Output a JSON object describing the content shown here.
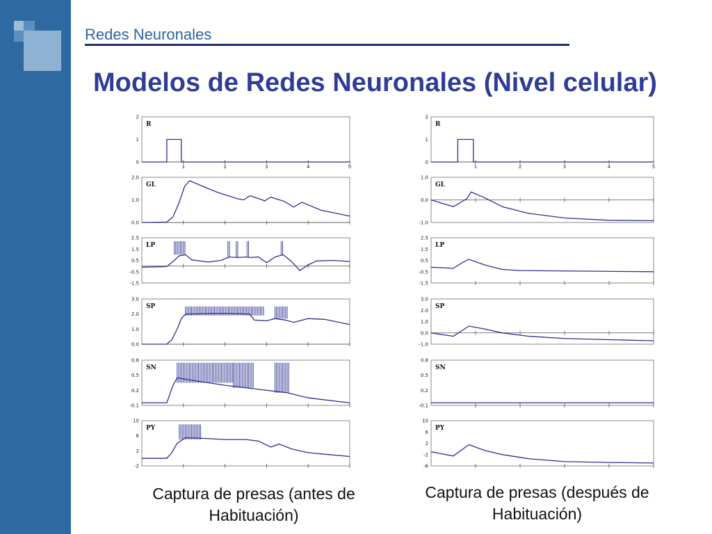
{
  "header": {
    "section_title": "Redes Neuronales",
    "slide_title": "Modelos de Redes Neuronales (Nivel celular)"
  },
  "captions": {
    "left": "Captura de presas (antes de Habituación)",
    "right": "Captura de presas (después de Habituación)"
  },
  "colors": {
    "sidebar": "#2e6aa1",
    "title": "#2f3d96",
    "trace": "#2b2f8f"
  },
  "chart_data": [
    {
      "type": "line",
      "condition": "Captura de presas (antes de Habituación)",
      "xticks": [
        "1",
        "2",
        "3",
        "4",
        "5"
      ],
      "panels": [
        {
          "label": "R",
          "yticks": [
            "2",
            "1",
            "0"
          ],
          "ylim": [
            0,
            2
          ],
          "grid_y": 0,
          "series": [
            [
              0,
              0
            ],
            [
              0.6,
              0
            ],
            [
              0.6,
              1
            ],
            [
              0.95,
              1
            ],
            [
              0.95,
              0
            ],
            [
              5,
              0
            ]
          ],
          "bursts": []
        },
        {
          "label": "GL",
          "yticks": [
            "2.0",
            "1.0",
            "0.0"
          ],
          "ylim": [
            0,
            2
          ],
          "grid_y": 0,
          "series": [
            [
              0,
              0
            ],
            [
              0.6,
              0.02
            ],
            [
              0.75,
              0.25
            ],
            [
              0.9,
              0.9
            ],
            [
              1.03,
              1.6
            ],
            [
              1.15,
              1.85
            ],
            [
              1.4,
              1.65
            ],
            [
              1.8,
              1.35
            ],
            [
              2.3,
              1.05
            ],
            [
              2.45,
              1.0
            ],
            [
              2.6,
              1.18
            ],
            [
              2.9,
              1.0
            ],
            [
              2.95,
              0.95
            ],
            [
              3.1,
              1.12
            ],
            [
              3.4,
              0.95
            ],
            [
              3.55,
              0.8
            ],
            [
              3.65,
              0.68
            ],
            [
              3.85,
              0.9
            ],
            [
              4.3,
              0.55
            ],
            [
              5,
              0.28
            ]
          ],
          "bursts": []
        },
        {
          "label": "LP",
          "yticks": [
            "2.5",
            "1.5",
            "0.5",
            "-0.5",
            "-1.5"
          ],
          "ylim": [
            -1.5,
            2.5
          ],
          "grid_y": 0,
          "series": [
            [
              0,
              -0.1
            ],
            [
              0.6,
              -0.05
            ],
            [
              0.75,
              0.4
            ],
            [
              0.9,
              0.9
            ],
            [
              1.05,
              1.0
            ],
            [
              1.2,
              0.55
            ],
            [
              1.6,
              0.35
            ],
            [
              1.9,
              0.5
            ],
            [
              2.1,
              0.8
            ],
            [
              2.3,
              0.75
            ],
            [
              2.5,
              0.8
            ],
            [
              2.6,
              0.75
            ],
            [
              2.8,
              0.8
            ],
            [
              3.0,
              0.3
            ],
            [
              3.2,
              0.8
            ],
            [
              3.4,
              1.0
            ],
            [
              3.6,
              0.4
            ],
            [
              3.8,
              -0.4
            ],
            [
              4.0,
              0.1
            ],
            [
              4.2,
              0.45
            ],
            [
              4.6,
              0.5
            ],
            [
              5,
              0.4
            ]
          ],
          "bursts": [
            [
              0.78,
              1.05,
              1.0,
              2.2
            ],
            [
              2.07,
              2.12,
              0.8,
              2.2
            ],
            [
              2.27,
              2.32,
              0.75,
              2.2
            ],
            [
              2.53,
              2.58,
              0.8,
              2.2
            ],
            [
              3.35,
              3.42,
              1.0,
              2.2
            ]
          ]
        },
        {
          "label": "SP",
          "yticks": [
            "3.0",
            "2.0",
            "1.0",
            "0.0"
          ],
          "ylim": [
            0,
            3
          ],
          "grid_y": 0,
          "series": [
            [
              0,
              0
            ],
            [
              0.6,
              0
            ],
            [
              0.72,
              0.3
            ],
            [
              0.85,
              1.0
            ],
            [
              0.95,
              1.7
            ],
            [
              1.05,
              2.0
            ],
            [
              2.0,
              2.05
            ],
            [
              2.6,
              2.0
            ],
            [
              2.7,
              1.6
            ],
            [
              3.0,
              1.55
            ],
            [
              3.2,
              1.7
            ],
            [
              3.45,
              1.6
            ],
            [
              3.65,
              1.45
            ],
            [
              4.0,
              1.7
            ],
            [
              4.4,
              1.65
            ],
            [
              5,
              1.3
            ]
          ],
          "bursts": [
            [
              1.05,
              2.95,
              1.9,
              2.5
            ],
            [
              3.2,
              3.5,
              1.7,
              2.5
            ]
          ]
        },
        {
          "label": "SN",
          "yticks": [
            "0.8",
            "0.5",
            "0.2",
            "-0.1"
          ],
          "ylim": [
            -0.1,
            0.8
          ],
          "grid_y": null,
          "series": [
            [
              0,
              -0.05
            ],
            [
              0.6,
              -0.05
            ],
            [
              0.75,
              0.3
            ],
            [
              0.85,
              0.45
            ],
            [
              1.2,
              0.4
            ],
            [
              2.0,
              0.3
            ],
            [
              3.0,
              0.2
            ],
            [
              3.5,
              0.15
            ],
            [
              4.0,
              0.05
            ],
            [
              5,
              -0.05
            ]
          ],
          "bursts": [
            [
              0.85,
              2.2,
              0.35,
              0.75
            ],
            [
              2.2,
              2.7,
              0.25,
              0.75
            ],
            [
              3.2,
              3.55,
              0.15,
              0.75
            ]
          ]
        },
        {
          "label": "PY",
          "yticks": [
            "10",
            "6",
            "2",
            "-2"
          ],
          "ylim": [
            -2,
            10
          ],
          "grid_y": null,
          "series": [
            [
              0,
              0
            ],
            [
              0.6,
              0
            ],
            [
              0.72,
              1.5
            ],
            [
              0.85,
              4.0
            ],
            [
              1.05,
              5.5
            ],
            [
              1.5,
              5.3
            ],
            [
              2.0,
              5.0
            ],
            [
              2.5,
              5.0
            ],
            [
              2.8,
              4.6
            ],
            [
              3.1,
              3.0
            ],
            [
              3.3,
              3.8
            ],
            [
              3.6,
              2.5
            ],
            [
              4.0,
              1.5
            ],
            [
              4.5,
              1.0
            ],
            [
              5,
              0.5
            ]
          ],
          "bursts": [
            [
              0.9,
              1.45,
              5.0,
              9.0
            ]
          ]
        }
      ]
    },
    {
      "type": "line",
      "condition": "Captura de presas (después de Habituación)",
      "xticks": [
        "1",
        "2",
        "3",
        "4",
        "5"
      ],
      "panels": [
        {
          "label": "R",
          "yticks": [
            "2",
            "1",
            "0"
          ],
          "ylim": [
            0,
            2
          ],
          "grid_y": 0,
          "series": [
            [
              0,
              0
            ],
            [
              0.6,
              0
            ],
            [
              0.6,
              1
            ],
            [
              0.95,
              1
            ],
            [
              0.95,
              0
            ],
            [
              5,
              0
            ]
          ],
          "bursts": []
        },
        {
          "label": "GL",
          "yticks": [
            "1.0",
            "0.0",
            "-1.0"
          ],
          "ylim": [
            -1,
            1
          ],
          "grid_y": 0,
          "series": [
            [
              0,
              0.0
            ],
            [
              0.5,
              -0.3
            ],
            [
              0.8,
              0.05
            ],
            [
              0.9,
              0.35
            ],
            [
              1.2,
              0.1
            ],
            [
              1.6,
              -0.3
            ],
            [
              2.2,
              -0.6
            ],
            [
              3.0,
              -0.8
            ],
            [
              4.0,
              -0.9
            ],
            [
              5,
              -0.92
            ]
          ],
          "bursts": []
        },
        {
          "label": "LP",
          "yticks": [
            "2.5",
            "1.5",
            "0.5",
            "-0.5",
            "-1.5"
          ],
          "ylim": [
            -1.5,
            2.5
          ],
          "grid_y": null,
          "series": [
            [
              0,
              -0.1
            ],
            [
              0.5,
              -0.2
            ],
            [
              0.7,
              0.3
            ],
            [
              0.85,
              0.6
            ],
            [
              1.2,
              0.1
            ],
            [
              1.6,
              -0.3
            ],
            [
              2.0,
              -0.4
            ],
            [
              5,
              -0.5
            ]
          ],
          "bursts": []
        },
        {
          "label": "SP",
          "yticks": [
            "3.0",
            "2.0",
            "1.0",
            "0.0",
            "-1.0"
          ],
          "ylim": [
            -1,
            3
          ],
          "grid_y": 0,
          "series": [
            [
              0,
              0
            ],
            [
              0.5,
              -0.3
            ],
            [
              0.85,
              0.6
            ],
            [
              1.2,
              0.35
            ],
            [
              1.6,
              0.0
            ],
            [
              2.2,
              -0.3
            ],
            [
              3.0,
              -0.5
            ],
            [
              4.0,
              -0.6
            ],
            [
              5,
              -0.7
            ]
          ],
          "bursts": []
        },
        {
          "label": "SN",
          "yticks": [
            "0.8",
            "0.5",
            "0.2",
            "-0.1"
          ],
          "ylim": [
            -0.1,
            0.8
          ],
          "grid_y": null,
          "series": [
            [
              0,
              -0.05
            ],
            [
              5,
              -0.05
            ]
          ],
          "bursts": []
        },
        {
          "label": "PY",
          "yticks": [
            "10",
            "6",
            "2",
            "-2",
            "-6"
          ],
          "ylim": [
            -6,
            10
          ],
          "grid_y": null,
          "series": [
            [
              0,
              -1.0
            ],
            [
              0.5,
              -2.5
            ],
            [
              0.85,
              1.5
            ],
            [
              1.2,
              -0.5
            ],
            [
              1.6,
              -2.0
            ],
            [
              2.2,
              -3.5
            ],
            [
              3.0,
              -4.5
            ],
            [
              4.0,
              -4.8
            ],
            [
              5,
              -5.0
            ]
          ],
          "bursts": []
        }
      ]
    }
  ]
}
